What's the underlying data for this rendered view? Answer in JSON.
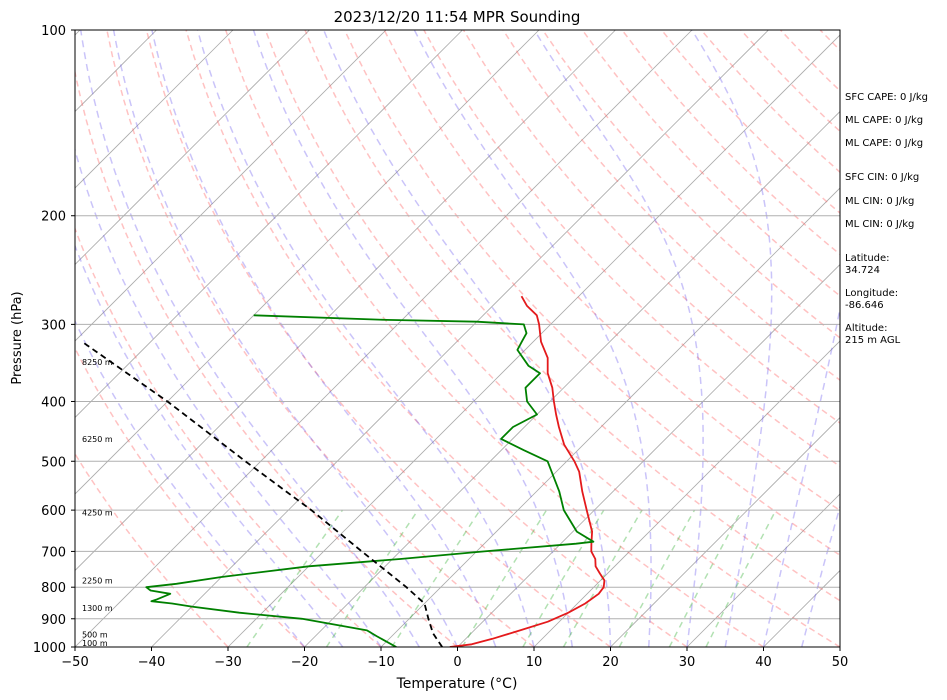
{
  "chart_data": {
    "type": "line",
    "title": "2023/12/20 11:54 MPR Sounding",
    "xlabel": "Temperature (°C)",
    "ylabel": "Pressure (hPa)",
    "xlim": [
      -50,
      50
    ],
    "ylim": [
      1000,
      100
    ],
    "y_scale": "log",
    "xticks": [
      -50,
      -40,
      -30,
      -20,
      -10,
      0,
      10,
      20,
      30,
      40,
      50
    ],
    "xtick_labels": [
      "−50",
      "−40",
      "−30",
      "−20",
      "−10",
      "0",
      "10",
      "20",
      "30",
      "40",
      "50"
    ],
    "yticks": [
      1000,
      900,
      800,
      700,
      600,
      500,
      400,
      300,
      200,
      100
    ],
    "grid": "horizontal at pressure ticks",
    "height_labels": [
      {
        "p": 985,
        "text": "100 m"
      },
      {
        "p": 955,
        "text": "500 m"
      },
      {
        "p": 865,
        "text": "1300 m"
      },
      {
        "p": 780,
        "text": "2250 m"
      },
      {
        "p": 605,
        "text": "4250 m"
      },
      {
        "p": 460,
        "text": "6250 m"
      },
      {
        "p": 345,
        "text": "8250 m"
      }
    ],
    "series": [
      {
        "role": "temperature",
        "color": "#e41a1c",
        "points": [
          [
            1000,
            -1.0
          ],
          [
            990,
            1.5
          ],
          [
            970,
            3.5
          ],
          [
            940,
            6.0
          ],
          [
            910,
            8.5
          ],
          [
            880,
            10.0
          ],
          [
            850,
            11.0
          ],
          [
            820,
            11.5
          ],
          [
            800,
            11.3
          ],
          [
            780,
            10.5
          ],
          [
            760,
            9.0
          ],
          [
            740,
            7.5
          ],
          [
            720,
            6.5
          ],
          [
            700,
            5.0
          ],
          [
            680,
            4.0
          ],
          [
            650,
            2.5
          ],
          [
            600,
            -1.0
          ],
          [
            560,
            -4.0
          ],
          [
            520,
            -7.0
          ],
          [
            500,
            -9.0
          ],
          [
            470,
            -12.5
          ],
          [
            440,
            -15.5
          ],
          [
            420,
            -17.5
          ],
          [
            400,
            -19.5
          ],
          [
            380,
            -21.5
          ],
          [
            360,
            -24.0
          ],
          [
            340,
            -26.0
          ],
          [
            320,
            -29.0
          ],
          [
            300,
            -31.5
          ],
          [
            290,
            -33.0
          ],
          [
            280,
            -35.5
          ],
          [
            270,
            -37.5
          ]
        ]
      },
      {
        "role": "dewpoint",
        "color": "#008000",
        "points": [
          [
            1000,
            -8.0
          ],
          [
            980,
            -10.0
          ],
          [
            960,
            -12.0
          ],
          [
            940,
            -14.0
          ],
          [
            900,
            -24.0
          ],
          [
            880,
            -33.0
          ],
          [
            860,
            -40.0
          ],
          [
            850,
            -43.0
          ],
          [
            843,
            -46.0
          ],
          [
            837,
            -45.5
          ],
          [
            820,
            -44.5
          ],
          [
            810,
            -47.5
          ],
          [
            800,
            -48.5
          ],
          [
            790,
            -45.0
          ],
          [
            770,
            -40.0
          ],
          [
            740,
            -30.0
          ],
          [
            720,
            -19.0
          ],
          [
            700,
            -9.0
          ],
          [
            680,
            2.0
          ],
          [
            675,
            4.0
          ],
          [
            650,
            0.5
          ],
          [
            600,
            -4.0
          ],
          [
            560,
            -7.0
          ],
          [
            500,
            -12.5
          ],
          [
            480,
            -17.0
          ],
          [
            460,
            -21.5
          ],
          [
            440,
            -21.5
          ],
          [
            420,
            -20.0
          ],
          [
            400,
            -23.0
          ],
          [
            380,
            -25.0
          ],
          [
            360,
            -25.0
          ],
          [
            350,
            -27.5
          ],
          [
            330,
            -31.0
          ],
          [
            320,
            -31.5
          ],
          [
            310,
            -32.0
          ],
          [
            300,
            -33.5
          ],
          [
            297,
            -40.0
          ],
          [
            295,
            -52.0
          ],
          [
            290,
            -70.0
          ]
        ]
      },
      {
        "role": "parcel",
        "color": "#000000",
        "points": [
          [
            1000,
            -2.0
          ],
          [
            950,
            -5.0
          ],
          [
            900,
            -7.5
          ],
          [
            850,
            -10.0
          ],
          [
            800,
            -14.5
          ],
          [
            700,
            -25.0
          ],
          [
            600,
            -37.0
          ],
          [
            500,
            -52.0
          ],
          [
            400,
            -70.0
          ],
          [
            320,
            -89.0
          ]
        ]
      }
    ]
  },
  "side_panel": [
    {
      "text": "SFC CAPE: 0 J/kg"
    },
    {
      "text": "ML CAPE: 0 J/kg"
    },
    {
      "text": "ML CAPE: 0 J/kg"
    },
    {
      "text": "SFC CIN: 0 J/kg"
    },
    {
      "text": "ML CIN: 0 J/kg"
    },
    {
      "text": "ML CIN: 0 J/kg"
    },
    {
      "text": "Latitude:\n34.724"
    },
    {
      "text": "Longitude:\n-86.646"
    },
    {
      "text": "Altitude:\n215 m AGL"
    }
  ]
}
